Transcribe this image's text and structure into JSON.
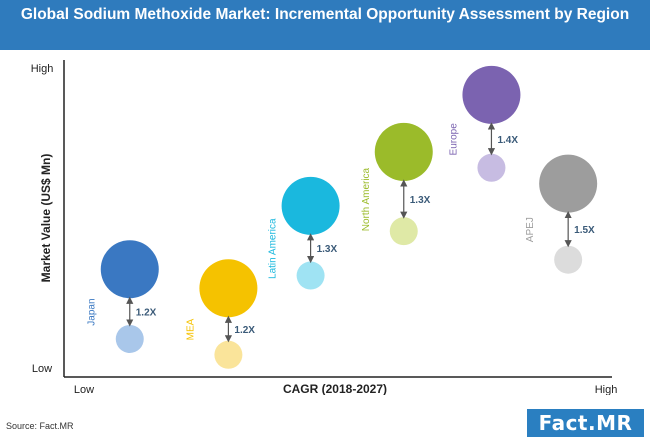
{
  "header": {
    "title": "Global Sodium Methoxide Market: Incremental Opportunity Assessment by Region"
  },
  "footer": {
    "source": "Source: Fact.MR",
    "logo_text": "Fact.MR"
  },
  "colors": {
    "banner": "#2f7bbd",
    "logo": "#2a7fc1",
    "axis": "#222222",
    "arrow": "#555555",
    "multiplier_text": "#3a5a78"
  },
  "chart_data": {
    "type": "scatter",
    "title": "",
    "xlabel": "CAGR (2018-2027)",
    "ylabel": "Market Value (US$ Mn)",
    "x_tick_labels": [
      "Low",
      "High"
    ],
    "y_tick_labels": [
      "Low",
      "High"
    ],
    "grid": false,
    "legend": "none",
    "series": [
      {
        "region": "Japan",
        "x": 0.12,
        "y_current": 0.34,
        "y_future": 0.12,
        "multiplier": "1.2X",
        "color": "#3a78c2",
        "future_color": "#a9c7ea"
      },
      {
        "region": "MEA",
        "x": 0.3,
        "y_current": 0.28,
        "y_future": 0.07,
        "multiplier": "1.2X",
        "color": "#f5c200",
        "future_color": "#fae49a"
      },
      {
        "region": "Latin America",
        "x": 0.45,
        "y_current": 0.54,
        "y_future": 0.32,
        "multiplier": "1.3X",
        "color": "#1ab8de",
        "future_color": "#9fe3f3"
      },
      {
        "region": "North America",
        "x": 0.62,
        "y_current": 0.71,
        "y_future": 0.46,
        "multiplier": "1.3X",
        "color": "#9bbb2a",
        "future_color": "#dfe9a6"
      },
      {
        "region": "Europe",
        "x": 0.78,
        "y_current": 0.89,
        "y_future": 0.66,
        "multiplier": "1.4X",
        "color": "#7b63b0",
        "future_color": "#c7bce2"
      },
      {
        "region": "APEJ",
        "x": 0.92,
        "y_current": 0.61,
        "y_future": 0.37,
        "multiplier": "1.5X",
        "color": "#9d9d9d",
        "future_color": "#dcdcdc"
      }
    ]
  }
}
